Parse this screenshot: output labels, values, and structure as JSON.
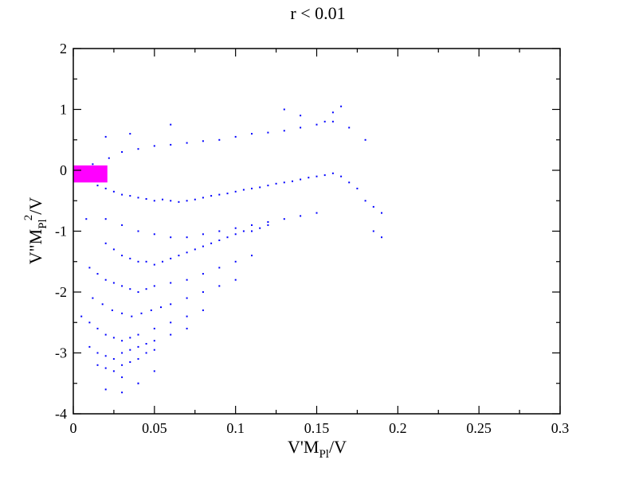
{
  "chart_data": {
    "type": "scatter",
    "title": "r < 0.01",
    "xlabel": {
      "base1": "V'M",
      "sub": "Pl",
      "base2": "/V"
    },
    "ylabel": {
      "base1": "V\"M",
      "sub": "Pl",
      "sup": "2",
      "base2": "/V"
    },
    "xlim": [
      0,
      0.3
    ],
    "ylim": [
      -4,
      2
    ],
    "xticks": [
      0,
      0.05,
      0.1,
      0.15,
      0.2,
      0.25,
      0.3
    ],
    "xtick_labels": [
      "0",
      "0.05",
      "0.1",
      "0.15",
      "0.2",
      "0.25",
      "0.3"
    ],
    "yticks": [
      -4,
      -3,
      -2,
      -1,
      0,
      1,
      2
    ],
    "ytick_labels": [
      "-4",
      "-3",
      "-2",
      "-1",
      "0",
      "1",
      "2"
    ],
    "grid": false,
    "series": [
      {
        "color": "#0000ff",
        "marker": "dot",
        "x": [
          0.004,
          0.01,
          0.015,
          0.02,
          0.025,
          0.03,
          0.035,
          0.04,
          0.045,
          0.05,
          0.055,
          0.06,
          0.065,
          0.07,
          0.075,
          0.08,
          0.085,
          0.09,
          0.095,
          0.1,
          0.105,
          0.11,
          0.115,
          0.12,
          0.125,
          0.13,
          0.135,
          0.14,
          0.145,
          0.15,
          0.155,
          0.16,
          0.165,
          0.17,
          0.175,
          0.18,
          0.185,
          0.19,
          0.012,
          0.022,
          0.03,
          0.04,
          0.05,
          0.06,
          0.07,
          0.08,
          0.09,
          0.1,
          0.11,
          0.12,
          0.13,
          0.14,
          0.15,
          0.16,
          0.17,
          0.18,
          0.02,
          0.03,
          0.04,
          0.05,
          0.06,
          0.07,
          0.08,
          0.09,
          0.1,
          0.11,
          0.12,
          0.13,
          0.14,
          0.15,
          0.02,
          0.025,
          0.03,
          0.035,
          0.04,
          0.045,
          0.05,
          0.055,
          0.06,
          0.065,
          0.07,
          0.075,
          0.08,
          0.085,
          0.09,
          0.095,
          0.1,
          0.105,
          0.11,
          0.115,
          0.12,
          0.01,
          0.015,
          0.02,
          0.025,
          0.03,
          0.035,
          0.04,
          0.045,
          0.05,
          0.06,
          0.07,
          0.08,
          0.09,
          0.1,
          0.11,
          0.012,
          0.018,
          0.024,
          0.03,
          0.036,
          0.042,
          0.048,
          0.054,
          0.06,
          0.07,
          0.08,
          0.09,
          0.1,
          0.005,
          0.01,
          0.015,
          0.02,
          0.025,
          0.03,
          0.035,
          0.04,
          0.05,
          0.06,
          0.07,
          0.08,
          0.01,
          0.015,
          0.02,
          0.025,
          0.03,
          0.035,
          0.04,
          0.045,
          0.05,
          0.06,
          0.07,
          0.015,
          0.02,
          0.025,
          0.03,
          0.035,
          0.04,
          0.045,
          0.05,
          0.03,
          0.04,
          0.02,
          0.03,
          0.13,
          0.14,
          0.155,
          0.165,
          0.185,
          0.19,
          0.16,
          0.02,
          0.035,
          0.06,
          0.008,
          0.05,
          0.04
        ],
        "y": [
          -0.05,
          -0.15,
          -0.25,
          -0.3,
          -0.35,
          -0.4,
          -0.42,
          -0.45,
          -0.47,
          -0.5,
          -0.48,
          -0.5,
          -0.52,
          -0.5,
          -0.48,
          -0.45,
          -0.42,
          -0.4,
          -0.38,
          -0.35,
          -0.32,
          -0.3,
          -0.28,
          -0.25,
          -0.22,
          -0.2,
          -0.18,
          -0.15,
          -0.12,
          -0.1,
          -0.08,
          -0.05,
          -0.1,
          -0.2,
          -0.3,
          -0.5,
          -1.0,
          -1.1,
          0.1,
          0.2,
          0.3,
          0.35,
          0.4,
          0.42,
          0.45,
          0.48,
          0.5,
          0.55,
          0.6,
          0.62,
          0.65,
          0.7,
          0.75,
          0.8,
          0.7,
          0.5,
          -0.8,
          -0.9,
          -1.0,
          -1.05,
          -1.1,
          -1.1,
          -1.05,
          -1.0,
          -0.95,
          -0.9,
          -0.85,
          -0.8,
          -0.75,
          -0.7,
          -1.2,
          -1.3,
          -1.4,
          -1.45,
          -1.5,
          -1.5,
          -1.55,
          -1.5,
          -1.45,
          -1.4,
          -1.35,
          -1.3,
          -1.25,
          -1.2,
          -1.15,
          -1.1,
          -1.05,
          -1.0,
          -1.0,
          -0.95,
          -0.9,
          -1.6,
          -1.7,
          -1.8,
          -1.85,
          -1.9,
          -1.95,
          -2.0,
          -1.95,
          -1.9,
          -1.85,
          -1.8,
          -1.7,
          -1.6,
          -1.5,
          -1.4,
          -2.1,
          -2.2,
          -2.3,
          -2.35,
          -2.4,
          -2.35,
          -2.3,
          -2.25,
          -2.2,
          -2.1,
          -2.0,
          -1.9,
          -1.8,
          -2.4,
          -2.5,
          -2.6,
          -2.7,
          -2.75,
          -2.8,
          -2.75,
          -2.7,
          -2.6,
          -2.5,
          -2.4,
          -2.3,
          -2.9,
          -3.0,
          -3.05,
          -3.1,
          -3.0,
          -2.95,
          -2.9,
          -2.85,
          -2.8,
          -2.7,
          -2.6,
          -3.2,
          -3.25,
          -3.3,
          -3.2,
          -3.15,
          -3.1,
          -3.0,
          -2.95,
          -3.4,
          -3.5,
          -3.6,
          -3.65,
          1.0,
          0.9,
          0.8,
          1.05,
          -0.6,
          -0.7,
          0.95,
          0.55,
          0.6,
          0.75,
          -0.8,
          -3.3,
          -3.5
        ]
      }
    ],
    "highlight_region": {
      "color": "#ff00ff",
      "x": [
        0,
        0.021
      ],
      "y": [
        -0.2,
        0.08
      ]
    }
  }
}
